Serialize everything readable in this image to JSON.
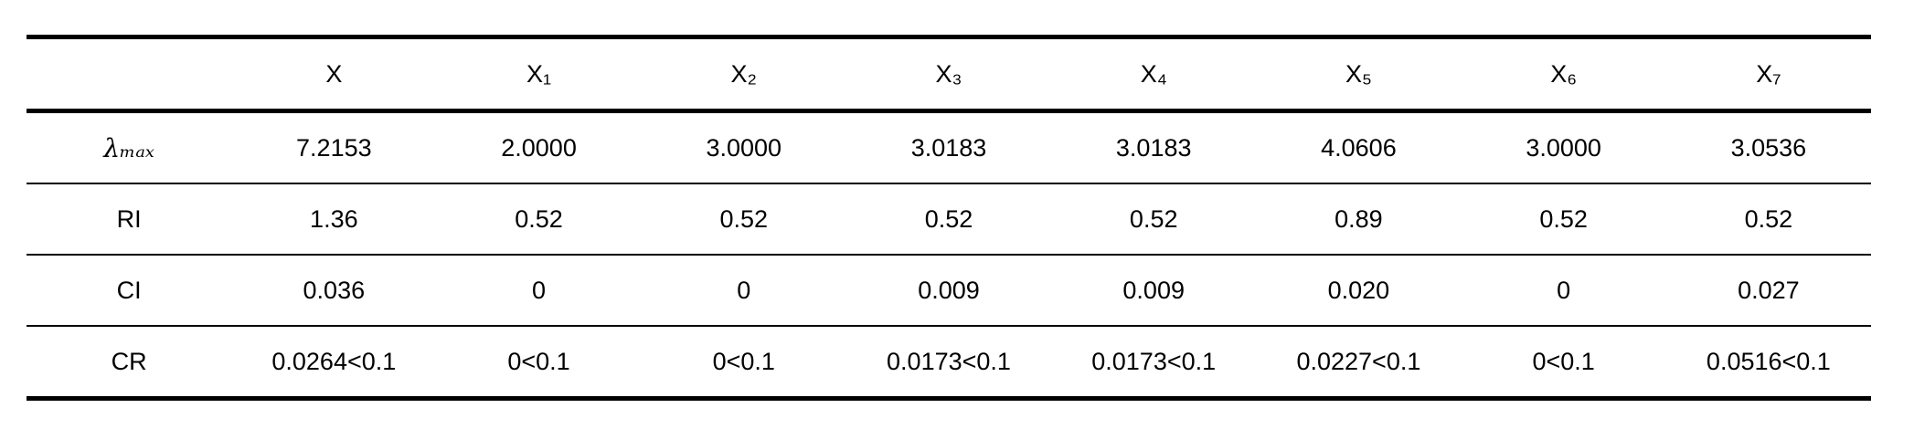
{
  "table": {
    "header": [
      "X",
      "X₁",
      "X₂",
      "X₃",
      "X₄",
      "X₅",
      "X₆",
      "X₇"
    ],
    "rows": [
      {
        "label": "λₘₐₓ",
        "cells": [
          "7.2153",
          "2.0000",
          "3.0000",
          "3.0183",
          "3.0183",
          "4.0606",
          "3.0000",
          "3.0536"
        ]
      },
      {
        "label": "RI",
        "cells": [
          "1.36",
          "0.52",
          "0.52",
          "0.52",
          "0.52",
          "0.89",
          "0.52",
          "0.52"
        ]
      },
      {
        "label": "CI",
        "cells": [
          "0.036",
          "0",
          "0",
          "0.009",
          "0.009",
          "0.020",
          "0",
          "0.027"
        ]
      },
      {
        "label": "CR",
        "cells": [
          "0.0264<0.1",
          "0<0.1",
          "0<0.1",
          "0.0173<0.1",
          "0.0173<0.1",
          "0.0227<0.1",
          "0<0.1",
          "0.0516<0.1"
        ]
      }
    ]
  }
}
